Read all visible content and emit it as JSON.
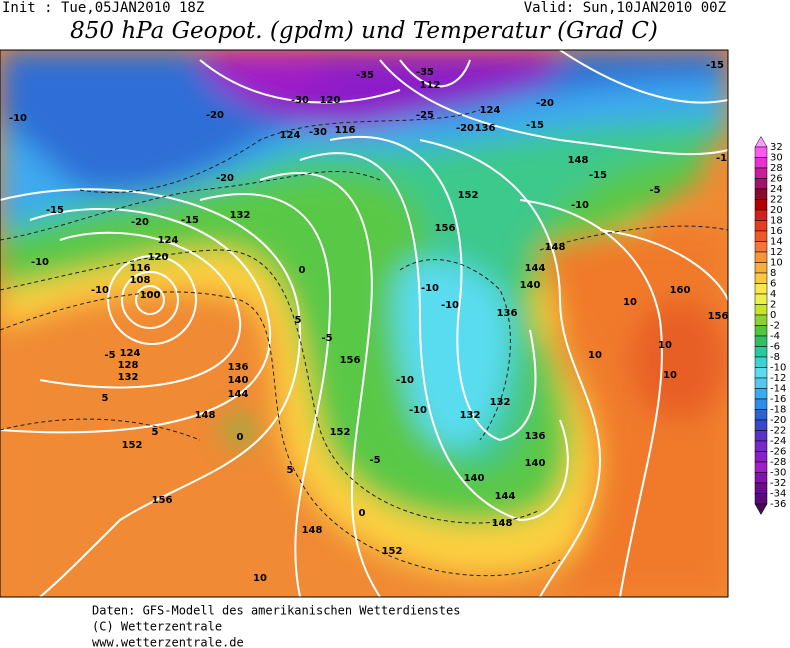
{
  "header": {
    "init": "Init : Tue,05JAN2010 18Z",
    "valid": "Valid: Sun,10JAN2010 00Z",
    "title": "850 hPa Geopot. (gpdm) und Temperatur (Grad C)"
  },
  "scale": {
    "ticks": [
      32,
      30,
      28,
      26,
      24,
      22,
      20,
      18,
      16,
      14,
      12,
      10,
      8,
      6,
      4,
      2,
      0,
      -2,
      -4,
      -6,
      -8,
      -10,
      -12,
      -14,
      -16,
      -18,
      -20,
      -22,
      -24,
      -26,
      -28,
      -30,
      -32,
      -34,
      -36
    ],
    "colors": [
      "#ff9cff",
      "#ff5aef",
      "#e832cc",
      "#c81e9a",
      "#a0146a",
      "#8c0a2a",
      "#b40000",
      "#d2201e",
      "#e63c1e",
      "#f05a28",
      "#f47832",
      "#f5963c",
      "#f8ae3c",
      "#fcc83c",
      "#fce650",
      "#f0f04c",
      "#c8e628",
      "#8cd232",
      "#50c83c",
      "#32be64",
      "#28c8a0",
      "#3cd2d2",
      "#5adcf0",
      "#50c8f0",
      "#3caaf0",
      "#2d8ce6",
      "#2864d2",
      "#3c46c8",
      "#5a32c8",
      "#7828c8",
      "#8c1ec8",
      "#a01ec8",
      "#8214aa",
      "#6e0a8c",
      "#5a0a78",
      "#460a5a"
    ]
  },
  "map_labels": [
    -10,
    -20,
    -30,
    120,
    -35,
    -35,
    112,
    116,
    -30,
    124,
    -25,
    124,
    -20,
    136,
    -15,
    -20,
    148,
    -15,
    -15,
    -10,
    -5,
    -10,
    148,
    144,
    140,
    136,
    152,
    156,
    132,
    -15,
    124,
    120,
    116,
    108,
    100,
    -15,
    -10,
    -10,
    124,
    128,
    132,
    136,
    140,
    144,
    148,
    152,
    156,
    0,
    5,
    -5,
    156,
    152,
    -5,
    -10,
    -10,
    -10,
    -10,
    132,
    132,
    136,
    140,
    140,
    144,
    148,
    152,
    148,
    10,
    0,
    -5,
    5,
    5,
    5,
    0,
    10,
    10,
    10,
    10,
    160,
    156,
    -20,
    -20
  ],
  "footer": {
    "line1": "Daten: GFS-Modell des amerikanischen Wetterdienstes",
    "line2": "(C) Wetterzentrale",
    "line3": "www.wetterzentrale.de"
  }
}
